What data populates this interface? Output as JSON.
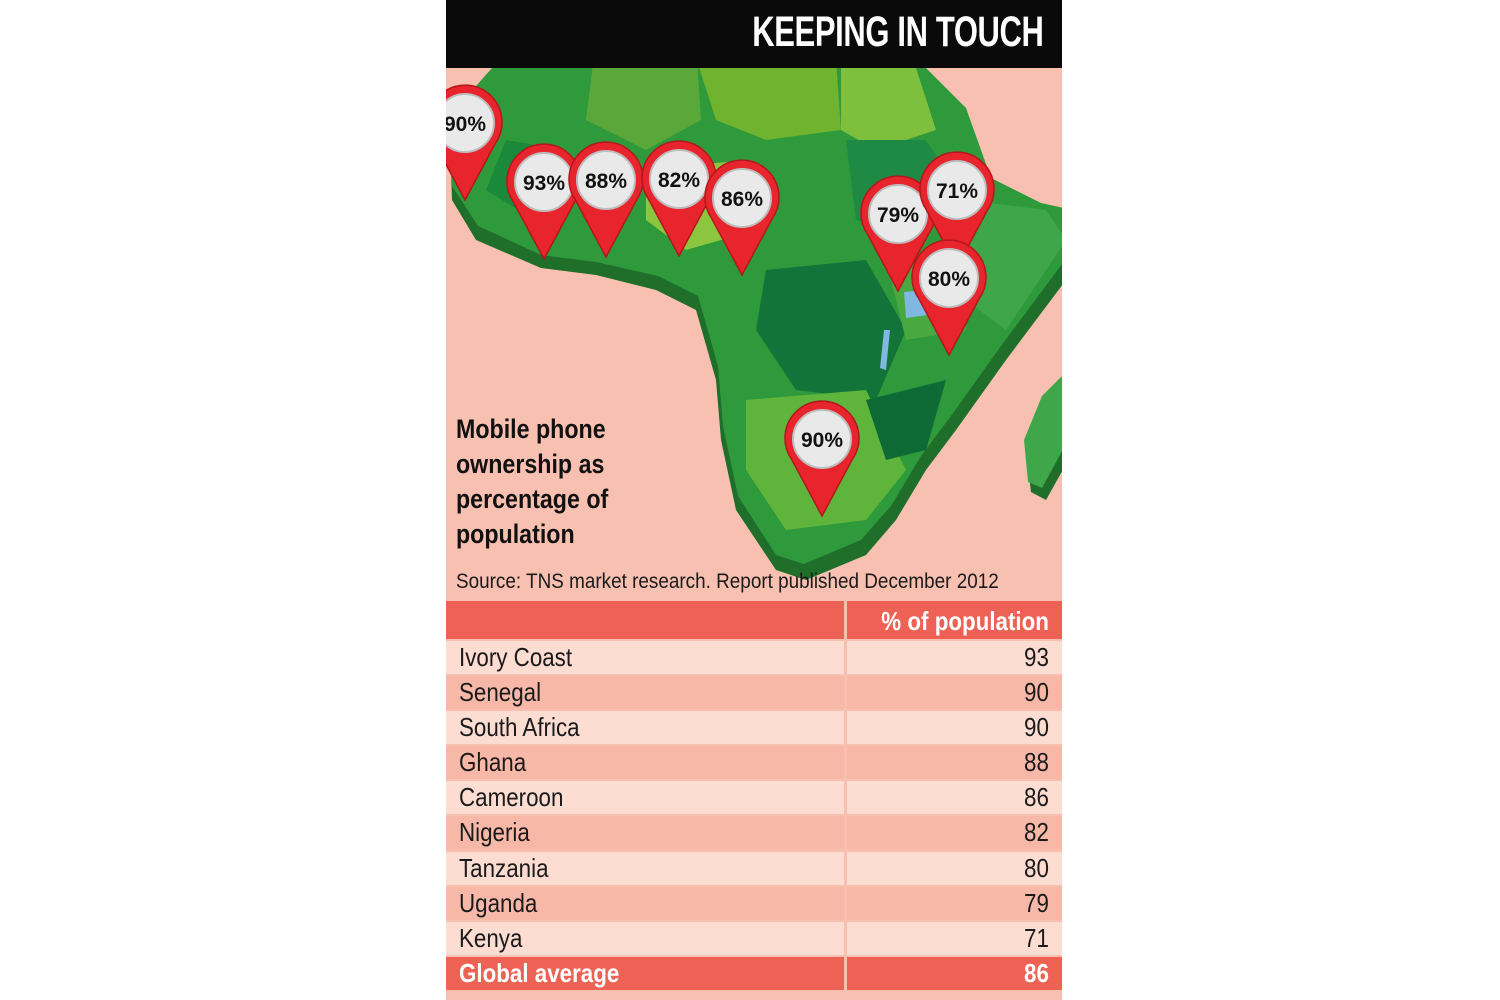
{
  "title": "KEEPING IN TOUCH",
  "subtitle": "Mobile phone ownership as percentage of population",
  "source": "Source: TNS market research. Report published December 2012",
  "colors": {
    "background": "#f8c0b0",
    "banner": "#0a0a0a",
    "pin": "#e8242c",
    "map_green": "#2e9a3c",
    "table_header": "#ee6256"
  },
  "chart_data": {
    "type": "table",
    "column_header": "% of population",
    "rows": [
      {
        "country": "Ivory Coast",
        "value": 93
      },
      {
        "country": "Senegal",
        "value": 90
      },
      {
        "country": "South Africa",
        "value": 90
      },
      {
        "country": "Ghana",
        "value": 88
      },
      {
        "country": "Cameroon",
        "value": 86
      },
      {
        "country": "Nigeria",
        "value": 82
      },
      {
        "country": "Tanzania",
        "value": 80
      },
      {
        "country": "Uganda",
        "value": 79
      },
      {
        "country": "Kenya",
        "value": 71
      }
    ],
    "global_average": {
      "label": "Global average",
      "value": 86
    },
    "map_pins": [
      {
        "country": "Senegal",
        "label": "90%"
      },
      {
        "country": "Ivory Coast",
        "label": "93%"
      },
      {
        "country": "Ghana",
        "label": "88%"
      },
      {
        "country": "Nigeria",
        "label": "82%"
      },
      {
        "country": "Cameroon",
        "label": "86%"
      },
      {
        "country": "Uganda",
        "label": "79%"
      },
      {
        "country": "Kenya",
        "label": "71%"
      },
      {
        "country": "Tanzania",
        "label": "80%"
      },
      {
        "country": "South Africa",
        "label": "90%"
      }
    ]
  }
}
